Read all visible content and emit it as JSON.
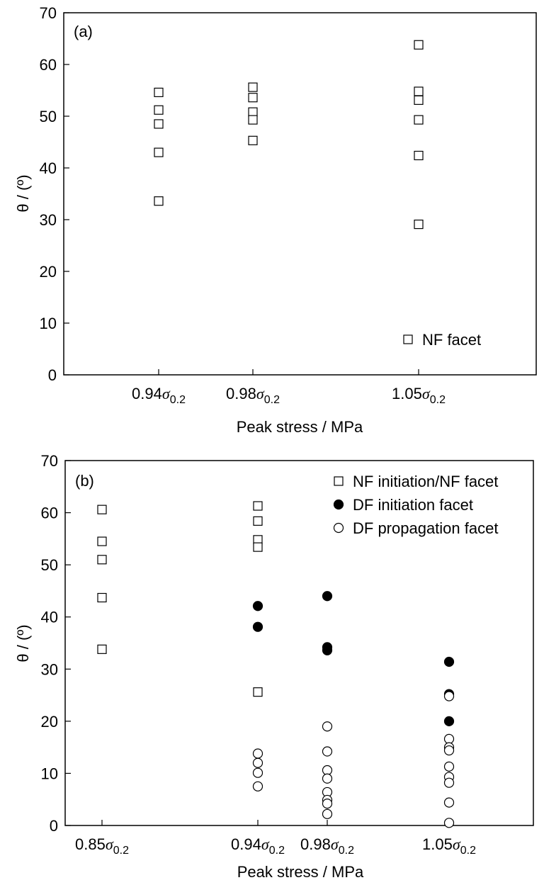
{
  "chart_data": [
    {
      "type": "scatter",
      "panel_label": "(a)",
      "xlabel": "Peak stress / MPa",
      "ylabel": "θ / (º)",
      "ylim": [
        0,
        70
      ],
      "yticks": [
        0,
        10,
        20,
        30,
        40,
        50,
        60,
        70
      ],
      "categories": [
        {
          "main": "0.94",
          "sym": "σ",
          "sub": "0.2"
        },
        {
          "main": "0.98",
          "sym": "σ",
          "sub": "0.2"
        },
        {
          "main": "1.05",
          "sym": "σ",
          "sub": "0.2"
        }
      ],
      "grid": false,
      "legend_position": "bottom-right",
      "series": [
        {
          "name": "NF facet",
          "marker": "square-open",
          "points": [
            {
              "x": 0,
              "y": 54.6
            },
            {
              "x": 0,
              "y": 51.2
            },
            {
              "x": 0,
              "y": 48.5
            },
            {
              "x": 0,
              "y": 43.0
            },
            {
              "x": 0,
              "y": 33.6
            },
            {
              "x": 1,
              "y": 55.6
            },
            {
              "x": 1,
              "y": 53.6
            },
            {
              "x": 1,
              "y": 50.8
            },
            {
              "x": 1,
              "y": 49.3
            },
            {
              "x": 1,
              "y": 45.3
            },
            {
              "x": 2,
              "y": 63.8
            },
            {
              "x": 2,
              "y": 54.8
            },
            {
              "x": 2,
              "y": 53.1
            },
            {
              "x": 2,
              "y": 49.3
            },
            {
              "x": 2,
              "y": 42.4
            },
            {
              "x": 2,
              "y": 29.1
            }
          ]
        }
      ]
    },
    {
      "type": "scatter",
      "panel_label": "(b)",
      "xlabel": "Peak stress / MPa",
      "ylabel": "θ / (º)",
      "ylim": [
        0,
        70
      ],
      "yticks": [
        0,
        10,
        20,
        30,
        40,
        50,
        60,
        70
      ],
      "categories": [
        {
          "main": "0.85",
          "sym": "σ",
          "sub": "0.2"
        },
        {
          "main": "0.94",
          "sym": "σ",
          "sub": "0.2"
        },
        {
          "main": "0.98",
          "sym": "σ",
          "sub": "0.2"
        },
        {
          "main": "1.05",
          "sym": "σ",
          "sub": "0.2"
        }
      ],
      "grid": false,
      "legend_position": "top-right",
      "series": [
        {
          "name": "NF initiation/NF facet",
          "marker": "square-open",
          "points": [
            {
              "x": 0,
              "y": 60.6
            },
            {
              "x": 0,
              "y": 54.5
            },
            {
              "x": 0,
              "y": 51.0
            },
            {
              "x": 0,
              "y": 43.7
            },
            {
              "x": 0,
              "y": 33.8
            },
            {
              "x": 1,
              "y": 61.3
            },
            {
              "x": 1,
              "y": 58.4
            },
            {
              "x": 1,
              "y": 54.8
            },
            {
              "x": 1,
              "y": 53.4
            },
            {
              "x": 1,
              "y": 25.6
            }
          ]
        },
        {
          "name": "DF initiation facet",
          "marker": "circle-filled",
          "points": [
            {
              "x": 1,
              "y": 42.1
            },
            {
              "x": 1,
              "y": 38.1
            },
            {
              "x": 2,
              "y": 44.0
            },
            {
              "x": 2,
              "y": 34.2
            },
            {
              "x": 2,
              "y": 33.6
            },
            {
              "x": 3,
              "y": 31.4
            },
            {
              "x": 3,
              "y": 25.2
            },
            {
              "x": 3,
              "y": 20.0
            }
          ]
        },
        {
          "name": "DF propagation facet",
          "marker": "circle-open",
          "points": [
            {
              "x": 1,
              "y": 13.8
            },
            {
              "x": 1,
              "y": 12.0
            },
            {
              "x": 1,
              "y": 10.1
            },
            {
              "x": 1,
              "y": 7.5
            },
            {
              "x": 2,
              "y": 19.0
            },
            {
              "x": 2,
              "y": 14.2
            },
            {
              "x": 2,
              "y": 10.6
            },
            {
              "x": 2,
              "y": 9.0
            },
            {
              "x": 2,
              "y": 6.4
            },
            {
              "x": 2,
              "y": 4.9
            },
            {
              "x": 2,
              "y": 4.2
            },
            {
              "x": 2,
              "y": 2.2
            },
            {
              "x": 3,
              "y": 24.8
            },
            {
              "x": 3,
              "y": 16.6
            },
            {
              "x": 3,
              "y": 15.0
            },
            {
              "x": 3,
              "y": 14.4
            },
            {
              "x": 3,
              "y": 11.3
            },
            {
              "x": 3,
              "y": 9.3
            },
            {
              "x": 3,
              "y": 8.2
            },
            {
              "x": 3,
              "y": 4.4
            },
            {
              "x": 3,
              "y": 0.5
            }
          ]
        }
      ]
    }
  ]
}
